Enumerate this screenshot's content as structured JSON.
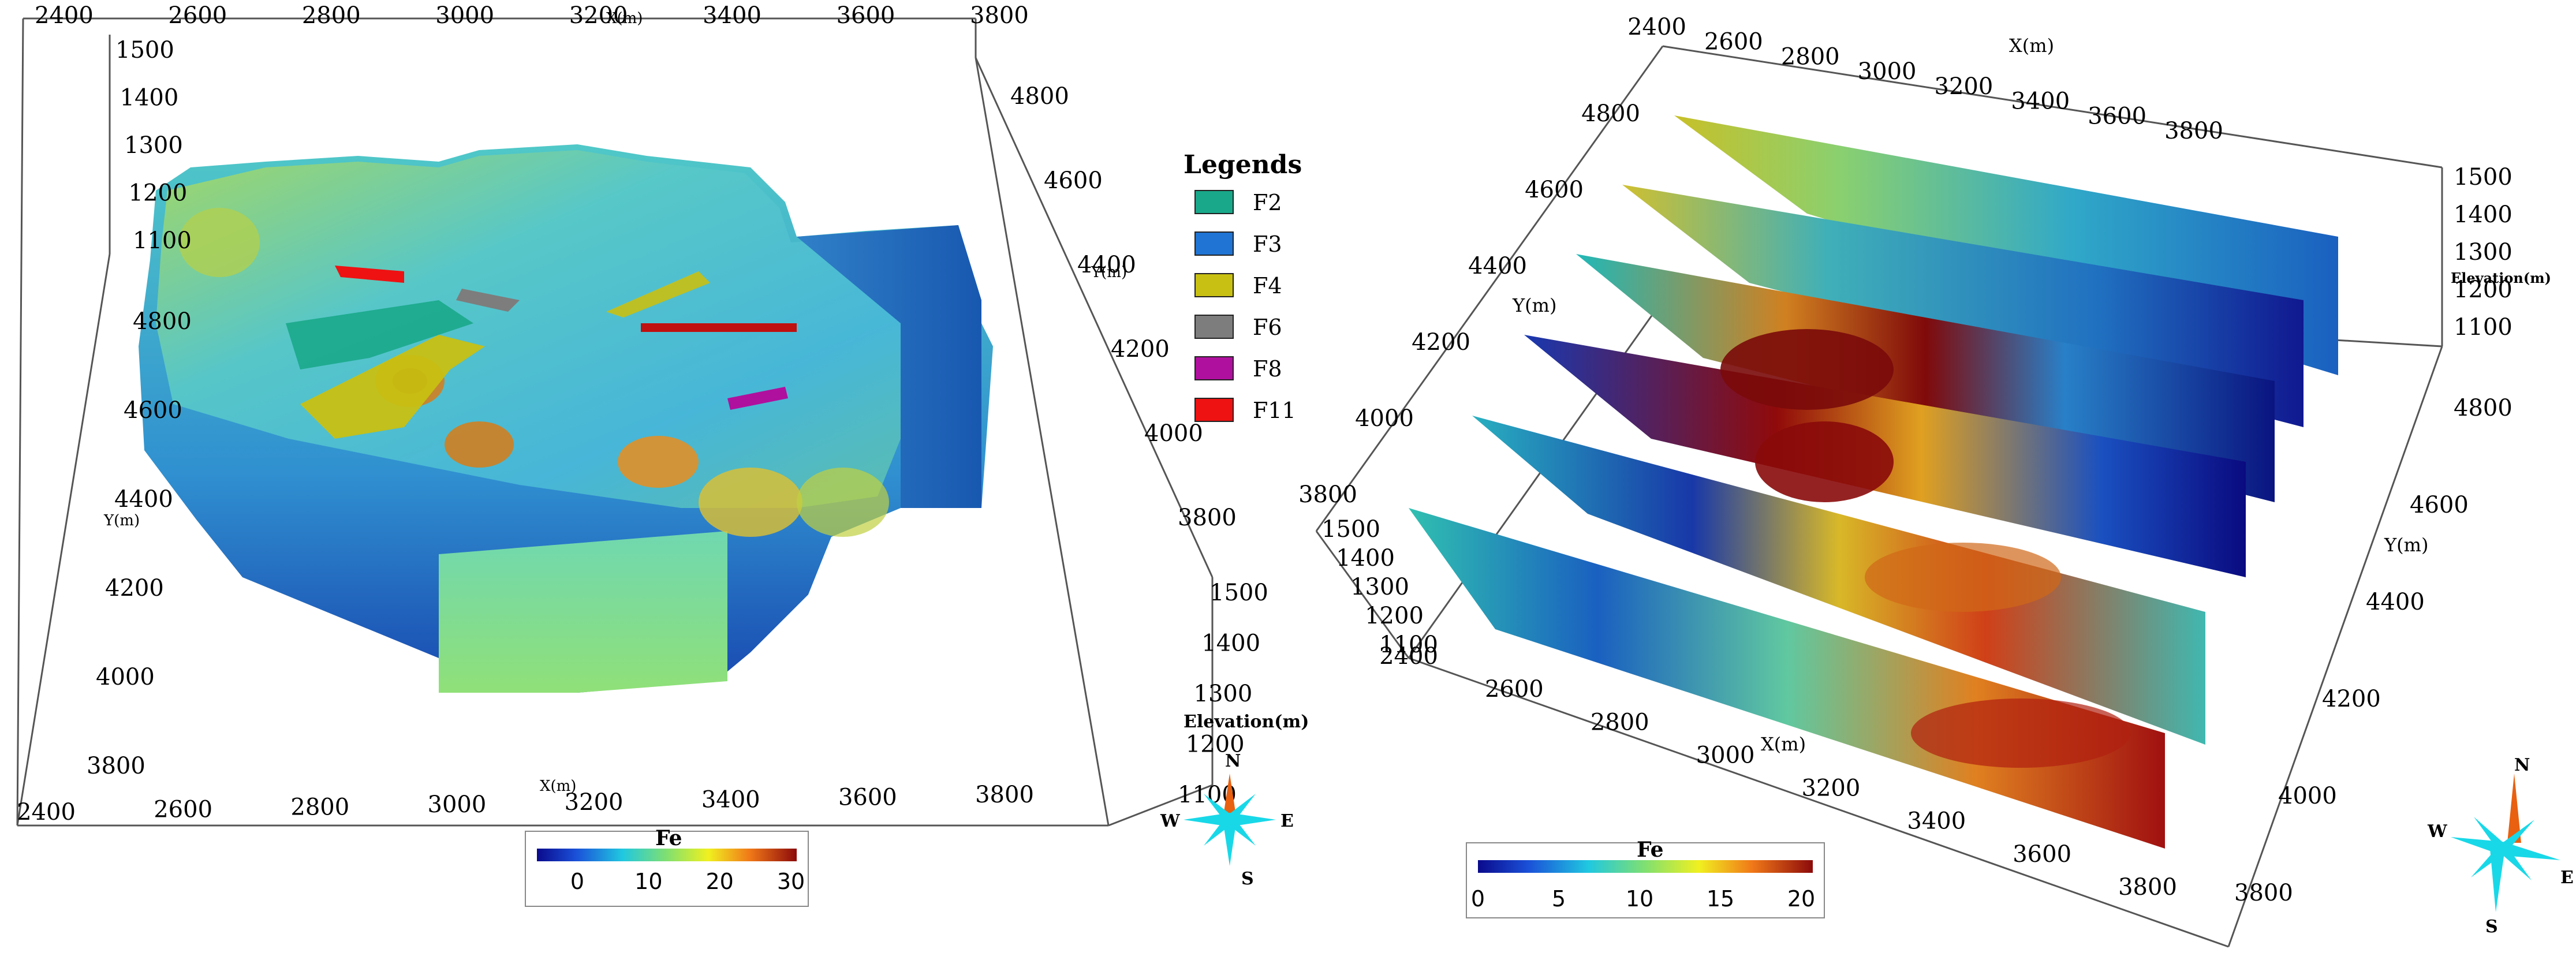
{
  "left_panel": {
    "x_axis_top_ticks": [
      "2400",
      "2600",
      "2800",
      "3000",
      "3200",
      "3400",
      "3600",
      "3800"
    ],
    "x_axis_top_label": "X(m)",
    "x_axis_bottom_ticks": [
      "2400",
      "2600",
      "2800",
      "3000",
      "3200",
      "3400",
      "3600",
      "3800"
    ],
    "x_axis_bottom_label": "X(m)",
    "elev_ticks_left": [
      "1500",
      "1400",
      "1300",
      "1200",
      "1100"
    ],
    "y_ticks_left": [
      "4800",
      "4600",
      "4400",
      "4200",
      "4000",
      "3800"
    ],
    "y_label_left": "Y(m)",
    "y_ticks_right": [
      "4800",
      "4600",
      "4400",
      "4200",
      "4000",
      "3800"
    ],
    "y_label_right": "Y(m)",
    "elev_ticks_right": [
      "1500",
      "1400",
      "1300",
      "1200",
      "1100"
    ],
    "elev_label": "Elevation(m)",
    "colorbar": {
      "title": "Fe",
      "ticks": [
        "0",
        "10",
        "20",
        "30"
      ]
    },
    "compass": {
      "n": "N",
      "s": "S",
      "e": "E",
      "w": "W"
    }
  },
  "legend": {
    "title": "Legends",
    "items": [
      {
        "label": "F2",
        "color": "#19a88a"
      },
      {
        "label": "F3",
        "color": "#1f74d4"
      },
      {
        "label": "F4",
        "color": "#c8c012"
      },
      {
        "label": "F6",
        "color": "#7d7d7d"
      },
      {
        "label": "F8",
        "color": "#b0109e"
      },
      {
        "label": "F11",
        "color": "#ee1212"
      }
    ]
  },
  "right_panel": {
    "x_axis_top_ticks": [
      "2400",
      "2600",
      "2800",
      "3000",
      "3200",
      "3400",
      "3600",
      "3800"
    ],
    "x_axis_top_label": "X(m)",
    "x_axis_bottom_ticks": [
      "2400",
      "2600",
      "2800",
      "3000",
      "3200",
      "3400",
      "3600",
      "3800"
    ],
    "x_axis_bottom_label": "X(m)",
    "y_ticks_left": [
      "4800",
      "4600",
      "4400",
      "4200",
      "4000",
      "3800"
    ],
    "y_label_left": "Y(m)",
    "elev_ticks_left": [
      "1500",
      "1400",
      "1300",
      "1200",
      "1100"
    ],
    "elev_ticks_right": [
      "1500",
      "1400",
      "1300",
      "1200",
      "1100"
    ],
    "elev_label": "Elevation(m)",
    "y_ticks_right": [
      "4800",
      "4600",
      "4400",
      "4200",
      "4000",
      "3800"
    ],
    "y_label_right": "Y(m)",
    "colorbar": {
      "title": "Fe",
      "ticks": [
        "0",
        "5",
        "10",
        "15",
        "20"
      ]
    },
    "compass": {
      "n": "N",
      "s": "S",
      "e": "E",
      "w": "W"
    }
  }
}
